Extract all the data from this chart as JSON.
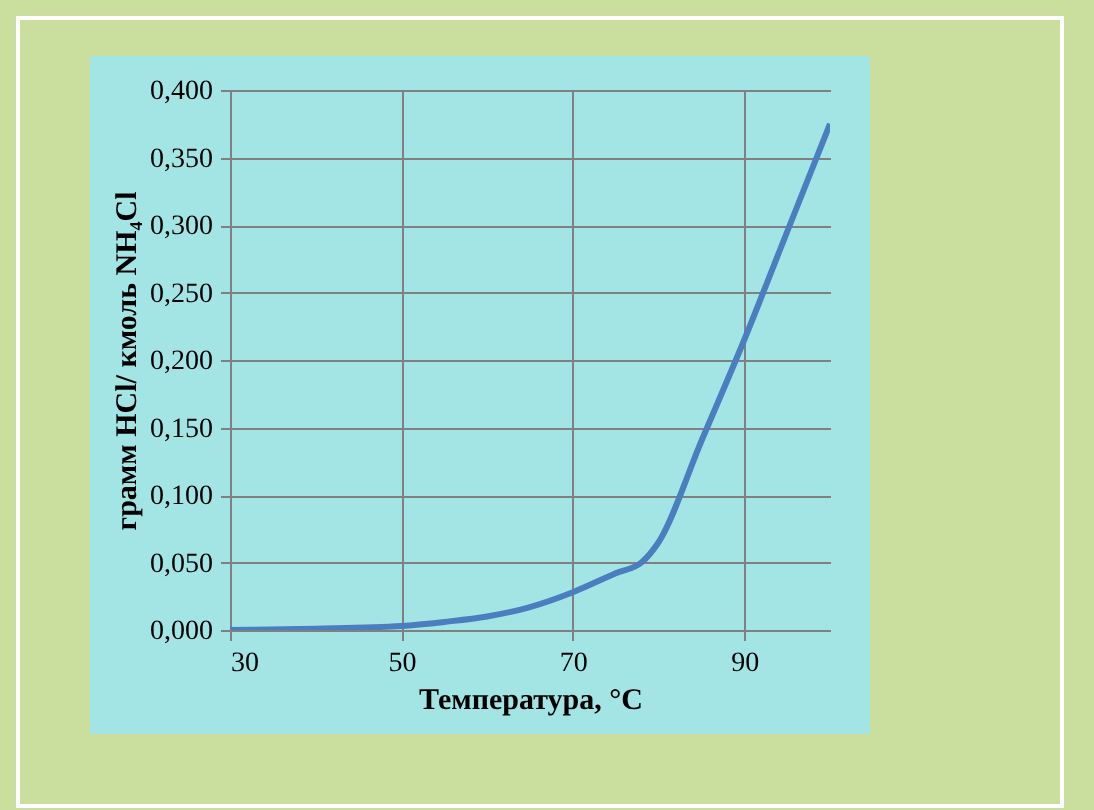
{
  "chart_data": {
    "type": "line",
    "xlabel": "Температура, °C",
    "ylabel": "грамм HCl/ кмоль NH₄Cl",
    "x": [
      30,
      40,
      50,
      55,
      60,
      65,
      70,
      75,
      78,
      80,
      85,
      90,
      95,
      100
    ],
    "series": [
      {
        "color": "#4a7ebf",
        "values": [
          0,
          0.001,
          0.003,
          0.006,
          0.01,
          0.017,
          0.028,
          0.042,
          0.05,
          0.065,
          0.14,
          0.215,
          0.295,
          0.375
        ]
      }
    ],
    "xlim": [
      30,
      100
    ],
    "xticks": [
      30,
      50,
      70,
      90
    ],
    "ylim": [
      0,
      0.4
    ],
    "yticks": [
      {
        "value": 0,
        "label": "0,000"
      },
      {
        "value": 0.05,
        "label": "0,050"
      },
      {
        "value": 0.1,
        "label": "0,100"
      },
      {
        "value": 0.15,
        "label": "0,150"
      },
      {
        "value": 0.2,
        "label": "0,200"
      },
      {
        "value": 0.25,
        "label": "0,250"
      },
      {
        "value": 0.3,
        "label": "0,300"
      },
      {
        "value": 0.35,
        "label": "0,350"
      },
      {
        "value": 0.4,
        "label": "0,400"
      }
    ],
    "grid": true,
    "marker": "none",
    "line_style": "solid",
    "legend": false
  }
}
